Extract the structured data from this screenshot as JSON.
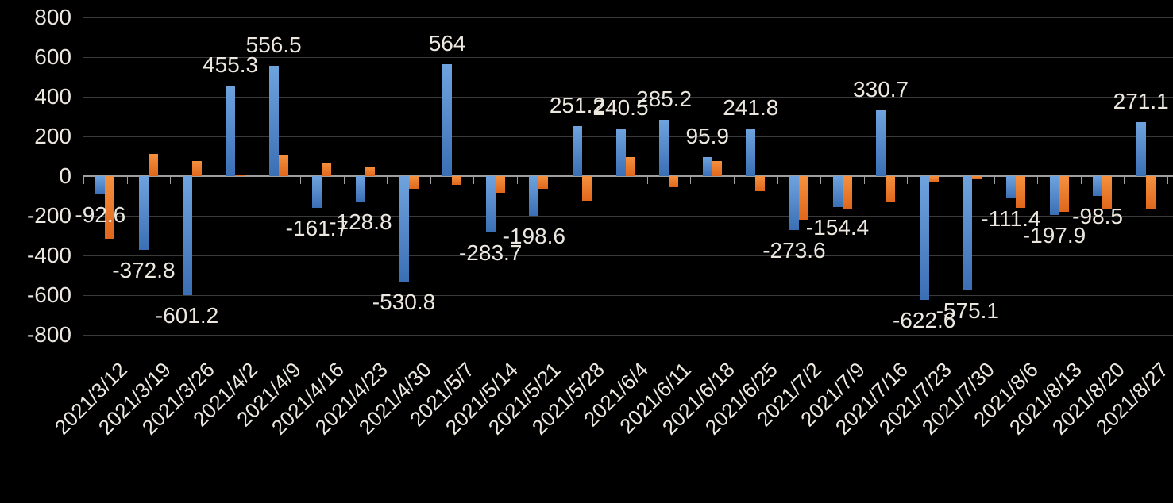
{
  "chart_data": {
    "type": "bar",
    "title": "",
    "background_color": "#000000",
    "text_color": "#ECE8E0",
    "gridline_color": "#3A3A3A",
    "axis_line_color": "#9E9E9E",
    "legend": "none",
    "gridlines": true,
    "categories": [
      "2021/3/12",
      "2021/3/19",
      "2021/3/26",
      "2021/4/2",
      "2021/4/9",
      "2021/4/16",
      "2021/4/23",
      "2021/4/30",
      "2021/5/7",
      "2021/5/14",
      "2021/5/21",
      "2021/5/28",
      "2021/6/4",
      "2021/6/11",
      "2021/6/18",
      "2021/6/25",
      "2021/7/2",
      "2021/7/9",
      "2021/7/16",
      "2021/7/23",
      "2021/7/30",
      "2021/8/6",
      "2021/8/13",
      "2021/8/20",
      "2021/8/27"
    ],
    "series": [
      {
        "name": "blue-series",
        "color": "#4E81C1",
        "color_gradient_top": "#6FA3DE",
        "color_gradient_bottom": "#3B6FB5",
        "values": [
          -92.6,
          -372.8,
          -601.2,
          455.3,
          556.5,
          -161.7,
          -128.8,
          -530.8,
          564,
          -283.7,
          -198.6,
          251.2,
          240.5,
          285.2,
          95.9,
          241.8,
          -273.6,
          -154.4,
          330.7,
          -622.6,
          -575.1,
          -111.4,
          -197.9,
          -98.5,
          271.1
        ],
        "data_labels": [
          "-92.6",
          "-372.8",
          "-601.2",
          "455.3",
          "556.5",
          "-161.7",
          "-128.8",
          "-530.8",
          "564",
          "-283.7",
          "-198.6",
          "251.2",
          "240.5",
          "285.2",
          "95.9",
          "241.8",
          "-273.6",
          "-154.4",
          "330.7",
          "-622.6",
          "-575.1",
          "-111.4",
          "-197.9",
          "-98.5",
          "271.1"
        ]
      },
      {
        "name": "orange-series",
        "color": "#ED7D31",
        "color_gradient_top": "#F4913F",
        "color_gradient_bottom": "#E0661B",
        "estimated": true,
        "values": [
          -315,
          113,
          75,
          8,
          107,
          70,
          48,
          -62,
          -45,
          -85,
          -62,
          -125,
          98,
          -55,
          78,
          -75,
          -218,
          -162,
          -130,
          -30,
          -14,
          -160,
          -180,
          -162,
          -168
        ]
      }
    ],
    "y_axis": {
      "min": -800,
      "max": 800,
      "step": 200,
      "tick_labels": [
        "800",
        "600",
        "400",
        "200",
        "0",
        "-200",
        "-400",
        "-600",
        "-800"
      ]
    },
    "x_axis": {
      "label_rotation_deg": 45
    }
  }
}
